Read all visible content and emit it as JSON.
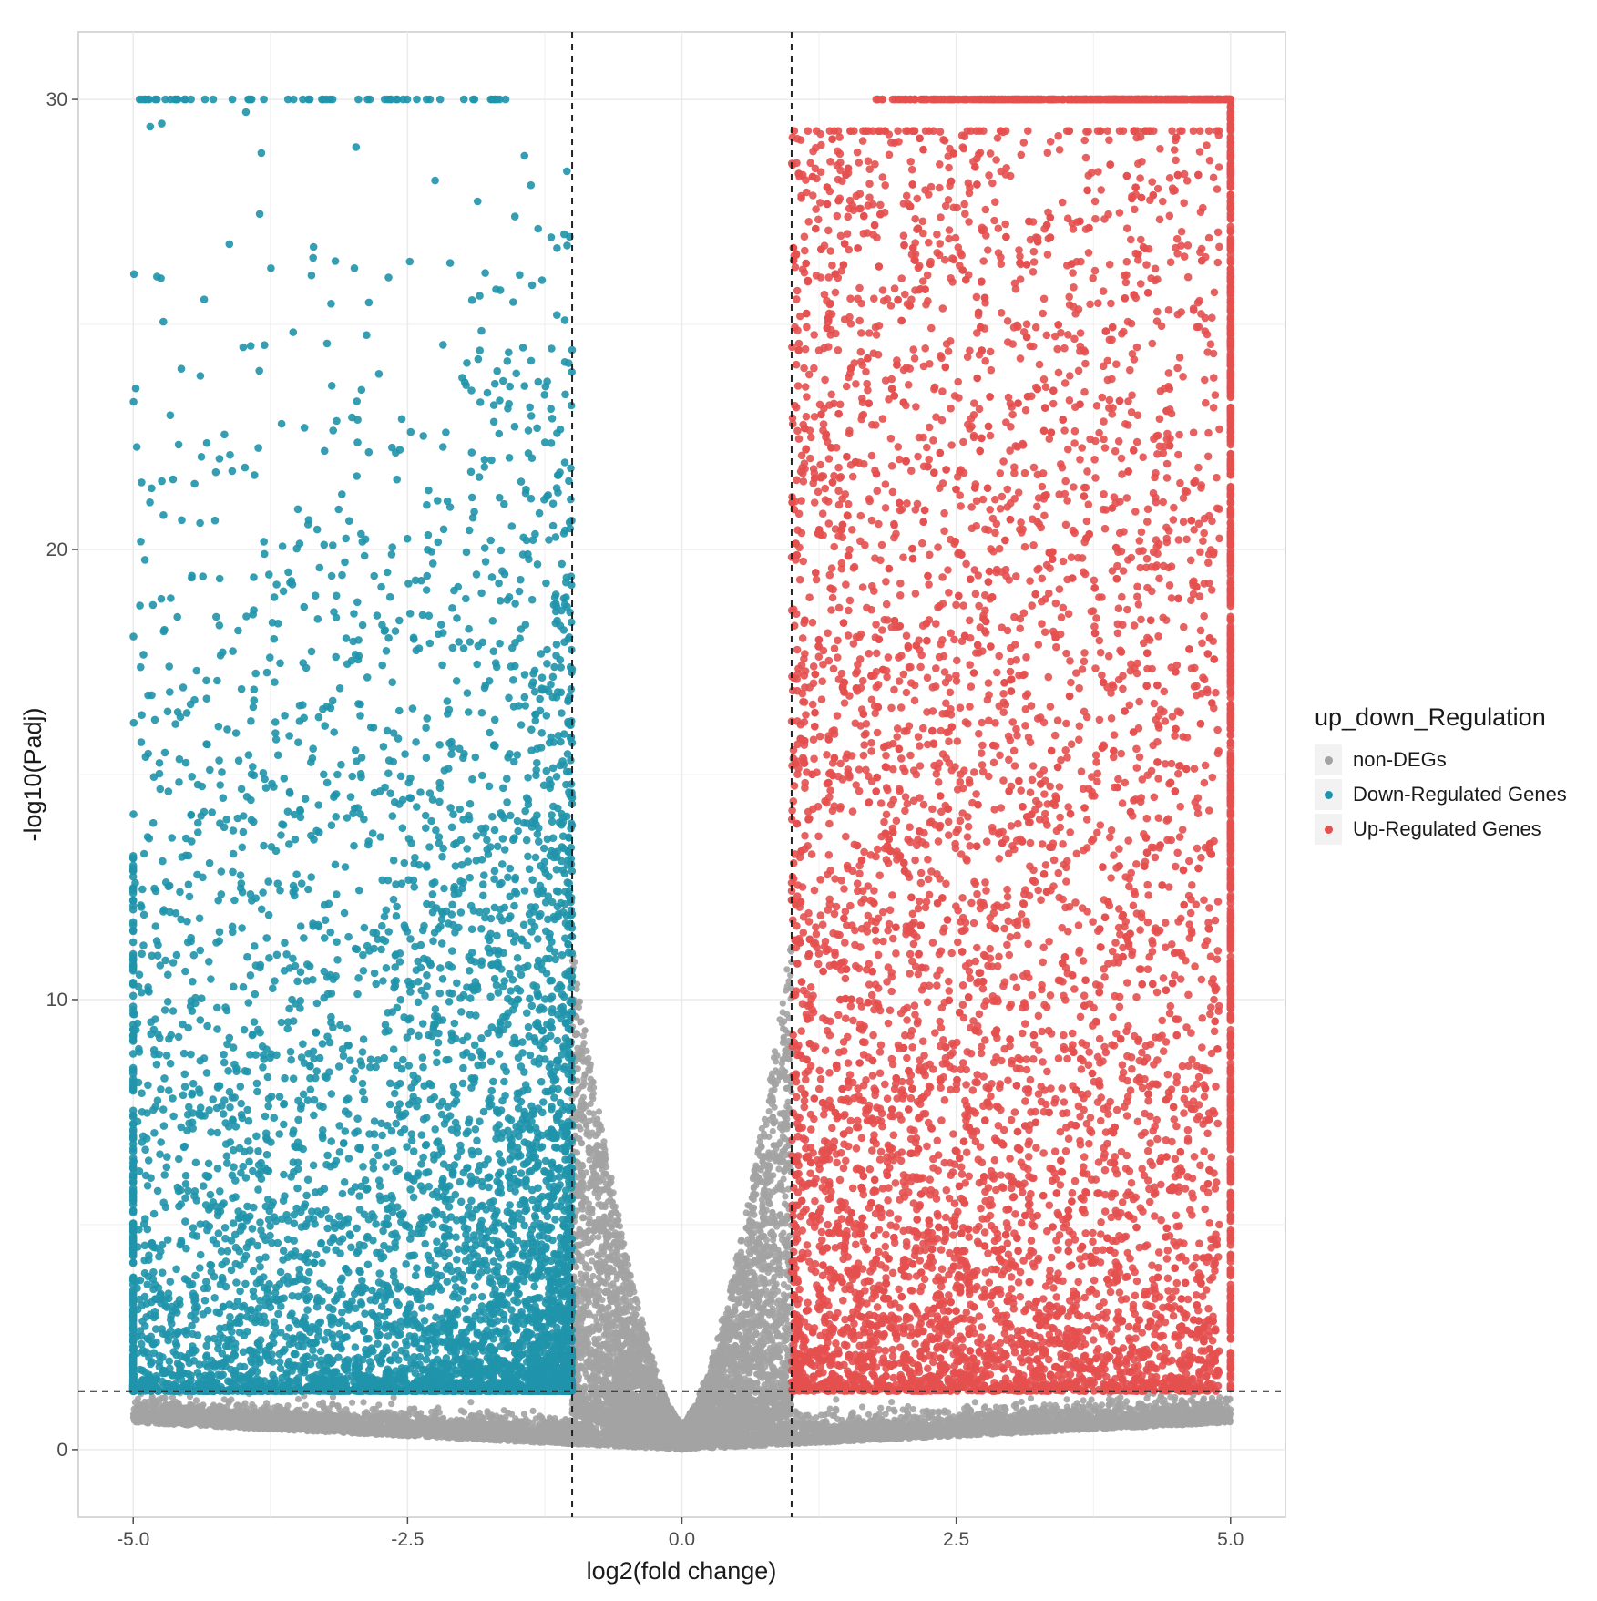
{
  "colors": {
    "non_degs": "#a3a3a3",
    "down": "#1f93ab",
    "up": "#e4504f",
    "threshold": "#222222",
    "grid": "#ebebeb",
    "panel_border": "#cccccc"
  },
  "legend": {
    "title": "up_down_Regulation",
    "placement": "right",
    "items": [
      {
        "label": "non-DEGs",
        "color": "#a3a3a3"
      },
      {
        "label": "Down-Regulated Genes",
        "color": "#1f93ab"
      },
      {
        "label": "Up-Regulated Genes",
        "color": "#e4504f"
      }
    ]
  },
  "chart_data": {
    "type": "scatter",
    "title": "",
    "xlabel": "log2(fold change)",
    "ylabel": "-log10(Padj)",
    "xlim": [
      -5.5,
      5.5
    ],
    "ylim": [
      -1.5,
      31.5
    ],
    "x_ticks": [
      -5.0,
      -2.5,
      0.0,
      2.5,
      5.0
    ],
    "x_tick_labels": [
      "-5.0",
      "-2.5",
      "0.0",
      "2.5",
      "5.0"
    ],
    "y_ticks": [
      0,
      10,
      20,
      30
    ],
    "y_tick_labels": [
      "0",
      "10",
      "20",
      "30"
    ],
    "grid": true,
    "thresholds": {
      "x": [
        -1,
        1
      ],
      "y": 1.3
    },
    "series": [
      {
        "name": "non-DEGs",
        "color": "#a3a3a3",
        "description_points": [
          [
            -4.8,
            0.6
          ],
          [
            -4.2,
            0.5
          ],
          [
            -3.5,
            0.7
          ],
          [
            -3.0,
            0.6
          ],
          [
            -2.5,
            0.8
          ],
          [
            -2.0,
            0.9
          ],
          [
            -1.8,
            1.0
          ],
          [
            -1.5,
            0.7
          ],
          [
            -1.2,
            1.1
          ],
          [
            -1.0,
            11.0
          ],
          [
            -0.9,
            9.0
          ],
          [
            -0.8,
            6.0
          ],
          [
            -0.6,
            4.0
          ],
          [
            -0.4,
            2.5
          ],
          [
            -0.2,
            1.2
          ],
          [
            0.0,
            0.1
          ],
          [
            0.2,
            1.0
          ],
          [
            0.4,
            2.0
          ],
          [
            0.6,
            3.5
          ],
          [
            0.8,
            5.5
          ],
          [
            0.95,
            8.0
          ],
          [
            1.0,
            9.5
          ],
          [
            1.5,
            1.1
          ],
          [
            2.5,
            0.8
          ],
          [
            3.5,
            0.9
          ],
          [
            4.4,
            0.8
          ],
          [
            5.0,
            1.2
          ]
        ]
      },
      {
        "name": "Down-Regulated Genes",
        "color": "#1f93ab",
        "description_points": [
          [
            -5.0,
            30
          ],
          [
            -4.5,
            30
          ],
          [
            -4.0,
            30
          ],
          [
            -3.5,
            30
          ],
          [
            -3.0,
            30
          ],
          [
            -2.5,
            30
          ],
          [
            -2.0,
            30
          ],
          [
            -1.6,
            30
          ],
          [
            -5.0,
            20
          ],
          [
            -5.0,
            27
          ],
          [
            -4.7,
            23
          ],
          [
            -4.2,
            28.5
          ],
          [
            -3.9,
            26
          ],
          [
            -3.0,
            28
          ],
          [
            -2.4,
            29.3
          ],
          [
            -1.9,
            29
          ],
          [
            -1.3,
            27
          ],
          [
            -2.2,
            22
          ],
          [
            -1.7,
            20
          ],
          [
            -3.5,
            18
          ],
          [
            -2.5,
            17
          ],
          [
            -1.3,
            16
          ],
          [
            -4.4,
            14
          ],
          [
            -3.0,
            13
          ],
          [
            -2.0,
            12
          ],
          [
            -1.1,
            11
          ],
          [
            -4.8,
            10.5
          ],
          [
            -3.5,
            9
          ],
          [
            -2.0,
            8
          ],
          [
            -1.2,
            7
          ],
          [
            -5.0,
            5
          ],
          [
            -4.0,
            4
          ],
          [
            -3.0,
            3.5
          ],
          [
            -2.0,
            3
          ],
          [
            -1.5,
            2
          ],
          [
            -1.1,
            1.6
          ]
        ]
      },
      {
        "name": "Up-Regulated Genes",
        "color": "#e4504f",
        "description_points": [
          [
            1.6,
            30
          ],
          [
            2.0,
            30
          ],
          [
            2.5,
            30
          ],
          [
            3.0,
            30
          ],
          [
            3.5,
            30
          ],
          [
            4.0,
            30
          ],
          [
            4.5,
            30
          ],
          [
            5.0,
            30
          ],
          [
            5.0,
            20
          ],
          [
            5.0,
            10
          ],
          [
            5.0,
            5
          ],
          [
            5.0,
            2
          ],
          [
            1.4,
            27
          ],
          [
            2.0,
            28
          ],
          [
            3.0,
            29
          ],
          [
            4.0,
            28
          ],
          [
            1.5,
            24
          ],
          [
            2.5,
            22
          ],
          [
            3.8,
            20
          ],
          [
            1.3,
            18
          ],
          [
            2.2,
            16
          ],
          [
            4.5,
            15
          ],
          [
            1.1,
            13
          ],
          [
            2.8,
            12
          ],
          [
            4.0,
            11
          ],
          [
            1.0,
            9
          ],
          [
            2.0,
            8
          ],
          [
            3.0,
            7
          ],
          [
            4.5,
            6
          ],
          [
            1.2,
            5
          ],
          [
            2.0,
            4
          ],
          [
            3.0,
            3
          ],
          [
            4.0,
            2.5
          ],
          [
            4.8,
            2
          ],
          [
            1.5,
            1.7
          ]
        ]
      }
    ]
  }
}
